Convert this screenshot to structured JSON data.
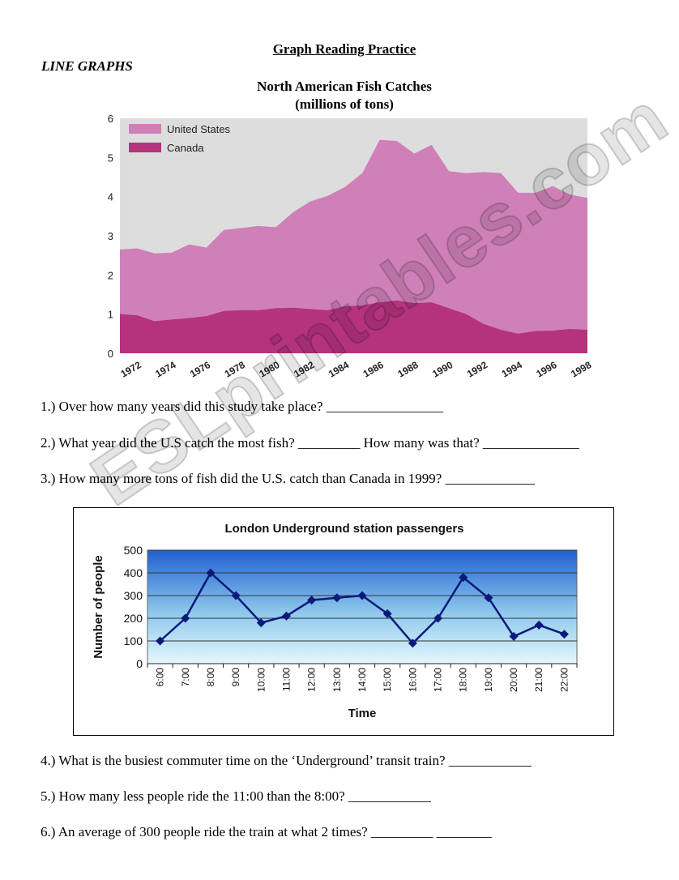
{
  "document": {
    "title": "Graph Reading Practice",
    "section_label": "LINE GRAPHS",
    "watermark": "ESLprintables.com"
  },
  "chart_data": [
    {
      "type": "area",
      "title": "North American Fish Catches",
      "subtitle": "(millions of tons)",
      "x": [
        1972,
        1973,
        1974,
        1975,
        1976,
        1977,
        1978,
        1979,
        1980,
        1981,
        1982,
        1983,
        1984,
        1985,
        1986,
        1987,
        1988,
        1989,
        1990,
        1991,
        1992,
        1993,
        1994,
        1995,
        1996,
        1997,
        1998,
        1999
      ],
      "x_tick_labels": [
        "1972",
        "1974",
        "1976",
        "1978",
        "1980",
        "1982",
        "1984",
        "1986",
        "1988",
        "1990",
        "1992",
        "1994",
        "1996",
        "1998"
      ],
      "y_tick_labels": [
        "0",
        "1",
        "2",
        "3",
        "4",
        "5",
        "6"
      ],
      "ylim": [
        0,
        6
      ],
      "series": [
        {
          "name": "United States",
          "color": "#d080b8",
          "values": [
            2.65,
            2.68,
            2.55,
            2.57,
            2.78,
            2.7,
            3.15,
            3.2,
            3.25,
            3.22,
            3.6,
            3.88,
            4.02,
            4.25,
            4.6,
            5.45,
            5.42,
            5.1,
            5.32,
            4.65,
            4.6,
            4.63,
            4.6,
            4.1,
            4.1,
            4.27,
            4.05,
            3.97
          ]
        },
        {
          "name": "Canada",
          "color": "#b5337d",
          "values": [
            1.0,
            0.97,
            0.82,
            0.86,
            0.9,
            0.95,
            1.08,
            1.1,
            1.1,
            1.15,
            1.16,
            1.13,
            1.1,
            1.2,
            1.22,
            1.3,
            1.35,
            1.28,
            1.3,
            1.15,
            1.0,
            0.75,
            0.6,
            0.5,
            0.57,
            0.58,
            0.62,
            0.6
          ]
        }
      ],
      "legend": "top-left",
      "grid": false
    },
    {
      "type": "line",
      "title": "London Underground station passengers",
      "xlabel": "Time",
      "ylabel": "Number of people",
      "categories": [
        "6:00",
        "7:00",
        "8:00",
        "9:00",
        "10:00",
        "11:00",
        "12:00",
        "13:00",
        "14:00",
        "15:00",
        "16:00",
        "17:00",
        "18:00",
        "19:00",
        "20:00",
        "21:00",
        "22:00"
      ],
      "y_tick_labels": [
        "0",
        "100",
        "200",
        "300",
        "400",
        "500"
      ],
      "ylim": [
        0,
        500
      ],
      "series": [
        {
          "color": "#0a1a7a",
          "values": [
            100,
            200,
            400,
            300,
            180,
            210,
            280,
            290,
            300,
            220,
            90,
            200,
            380,
            290,
            120,
            170,
            130
          ]
        }
      ],
      "grid": true
    }
  ],
  "questions": [
    {
      "text": "1.) Over how many years did this study take place? _________________"
    },
    {
      "text": "2.) What year did the U.S catch the most fish? _________ How many was that? ______________"
    },
    {
      "text": "3.) How many more tons of fish did the U.S. catch than Canada in 1999? _____________"
    },
    {
      "text": "4.) What is the busiest commuter time on the ‘Underground’ transit train? ____________"
    },
    {
      "text": "5.) How many less people ride the 11:00 than the 8:00? ____________"
    },
    {
      "text": "6.) An average of 300 people ride the train at what 2 times?   _________   ________"
    }
  ]
}
